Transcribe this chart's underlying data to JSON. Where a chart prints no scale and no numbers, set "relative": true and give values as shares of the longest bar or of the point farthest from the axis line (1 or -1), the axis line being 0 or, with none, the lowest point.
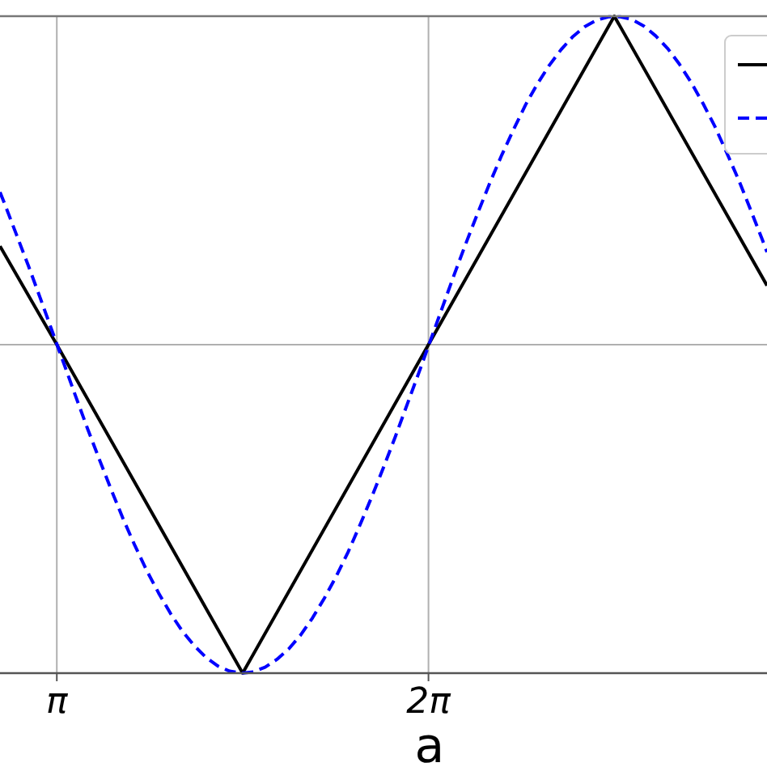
{
  "chart_data": {
    "type": "line",
    "xlabel": "a",
    "relative": true,
    "x": [
      2.66,
      2.7,
      2.8,
      2.9,
      3.0,
      3.1,
      3.2,
      3.3,
      3.4,
      3.5,
      3.6,
      3.7,
      3.8,
      3.9,
      4.0,
      4.1,
      4.2,
      4.3,
      4.4,
      4.5,
      4.6,
      4.7,
      4.8,
      4.9,
      5.0,
      5.1,
      5.2,
      5.3,
      5.4,
      5.5,
      5.6,
      5.7,
      5.8,
      5.9,
      6.0,
      6.1,
      6.2,
      6.3,
      6.4,
      6.5,
      6.6,
      6.7,
      6.8,
      6.9,
      7.0,
      7.1,
      7.2,
      7.3,
      7.4,
      7.5,
      7.6,
      7.7,
      7.8,
      7.9,
      8.0,
      8.1,
      8.2,
      8.3,
      8.4,
      8.5,
      8.6,
      8.7,
      8.8,
      8.9,
      9.0,
      9.1,
      9.14
    ],
    "series": [
      {
        "color": "#000000",
        "line_style": "solid",
        "x": [
          2.66,
          3.14,
          4.71,
          7.85,
          9.14
        ],
        "values": [
          0.65,
          0.5,
          0,
          1,
          0.59
        ]
      },
      {
        "color": "#0000ff",
        "line_style": "dashed",
        "values": [
          0.732,
          0.714,
          0.667,
          0.62,
          0.571,
          0.521,
          0.471,
          0.421,
          0.372,
          0.325,
          0.279,
          0.235,
          0.194,
          0.156,
          0.122,
          0.091,
          0.064,
          0.042,
          0.024,
          0.011,
          0.003,
          0,
          0.002,
          0.009,
          0.021,
          0.037,
          0.058,
          0.084,
          0.114,
          0.147,
          0.184,
          0.225,
          0.268,
          0.313,
          0.36,
          0.409,
          0.458,
          0.508,
          0.558,
          0.608,
          0.656,
          0.702,
          0.747,
          0.789,
          0.828,
          0.865,
          0.897,
          0.925,
          0.949,
          0.969,
          0.984,
          0.994,
          0.999,
          0.999,
          0.995,
          0.985,
          0.97,
          0.951,
          0.927,
          0.899,
          0.867,
          0.832,
          0.792,
          0.751,
          0.706,
          0.66,
          0.641
        ]
      }
    ],
    "xlim": [
      2.66,
      9.14
    ],
    "xticks": [
      {
        "value": 3.14,
        "label": "π"
      },
      {
        "value": 6.28,
        "label": "2π"
      }
    ],
    "grid": "x",
    "ref_lines": [
      {
        "axis": "y",
        "value": 0.5,
        "color": "#b0b0b0"
      }
    ]
  }
}
